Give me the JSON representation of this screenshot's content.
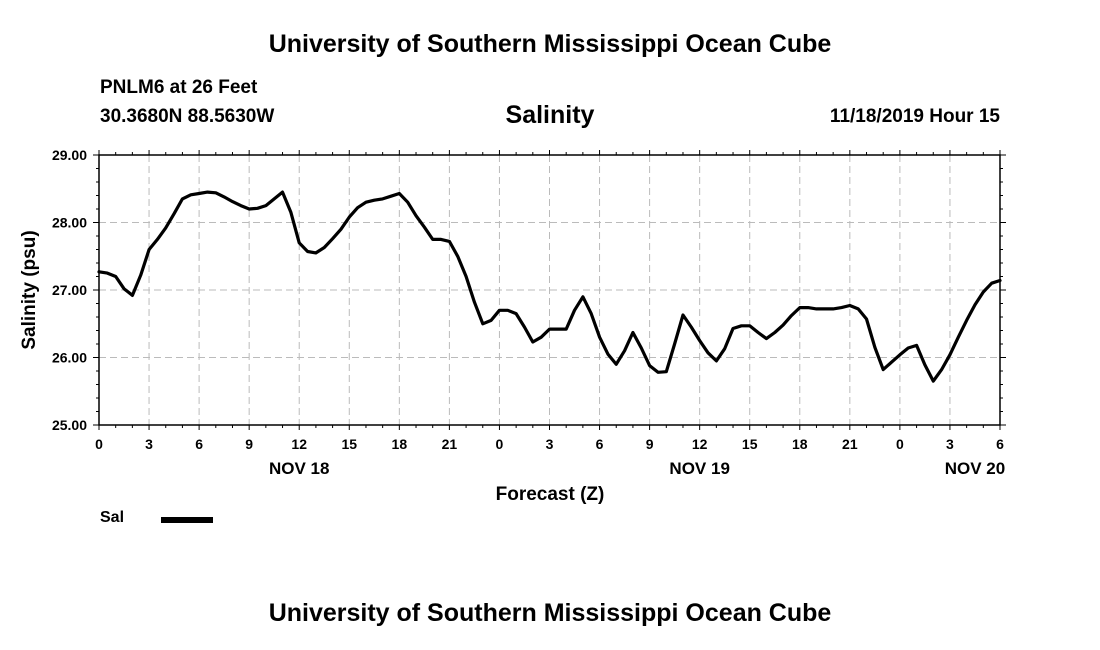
{
  "header": {
    "org_title": "University of Southern Mississippi Ocean Cube",
    "station": "PNLM6 at 26 Feet",
    "coords": "30.3680N 88.5630W",
    "variable": "Salinity",
    "datetime": "11/18/2019 Hour 15"
  },
  "footer": {
    "org_title": "University of Southern Mississippi Ocean Cube"
  },
  "legend": {
    "label": "Sal",
    "color": "#000000"
  },
  "chart_data": {
    "type": "line",
    "title": "Salinity",
    "xlabel": "Forecast (Z)",
    "ylabel": "Salinity (psu)",
    "x_unit": "hours since NOV 18 00Z",
    "xlim": [
      0,
      54
    ],
    "ylim": [
      25,
      29
    ],
    "grid": true,
    "legend_position": "bottom-left",
    "y_ticks": [
      {
        "value": 25,
        "label": "25.00"
      },
      {
        "value": 26,
        "label": "26.00"
      },
      {
        "value": 27,
        "label": "27.00"
      },
      {
        "value": 28,
        "label": "28.00"
      },
      {
        "value": 29,
        "label": "29.00"
      }
    ],
    "x_ticks": [
      {
        "value": 0,
        "label": "0"
      },
      {
        "value": 3,
        "label": "3"
      },
      {
        "value": 6,
        "label": "6"
      },
      {
        "value": 9,
        "label": "9"
      },
      {
        "value": 12,
        "label": "12"
      },
      {
        "value": 15,
        "label": "15"
      },
      {
        "value": 18,
        "label": "18"
      },
      {
        "value": 21,
        "label": "21"
      },
      {
        "value": 24,
        "label": "0"
      },
      {
        "value": 27,
        "label": "3"
      },
      {
        "value": 30,
        "label": "6"
      },
      {
        "value": 33,
        "label": "9"
      },
      {
        "value": 36,
        "label": "12"
      },
      {
        "value": 39,
        "label": "15"
      },
      {
        "value": 42,
        "label": "18"
      },
      {
        "value": 45,
        "label": "21"
      },
      {
        "value": 48,
        "label": "0"
      },
      {
        "value": 51,
        "label": "3"
      },
      {
        "value": 54,
        "label": "6"
      }
    ],
    "date_labels": [
      {
        "value": 12,
        "label": "NOV 18"
      },
      {
        "value": 36,
        "label": "NOV 19"
      },
      {
        "value": 52.5,
        "label": "NOV 20"
      }
    ],
    "series": [
      {
        "name": "Sal",
        "x": [
          0,
          0.5,
          1,
          1.5,
          2,
          2.5,
          3,
          3.5,
          4,
          4.5,
          5,
          5.5,
          6,
          6.5,
          7,
          7.5,
          8,
          8.5,
          9,
          9.5,
          10,
          10.5,
          11,
          11.5,
          12,
          12.5,
          13,
          13.5,
          14,
          14.5,
          15,
          15.5,
          16,
          16.5,
          17,
          17.5,
          18,
          18.5,
          19,
          19.5,
          20,
          20.5,
          21,
          21.5,
          22,
          22.5,
          23,
          23.5,
          24,
          24.5,
          25,
          25.5,
          26,
          26.5,
          27,
          27.5,
          28,
          28.5,
          29,
          29.5,
          30,
          30.5,
          31,
          31.5,
          32,
          32.5,
          33,
          33.5,
          34,
          34.5,
          35,
          35.5,
          36,
          36.5,
          37,
          37.5,
          38,
          38.5,
          39,
          39.5,
          40,
          40.5,
          41,
          41.5,
          42,
          42.5,
          43,
          43.5,
          44,
          44.5,
          45,
          45.5,
          46,
          46.5,
          47,
          47.5,
          48,
          48.5,
          49,
          49.5,
          50,
          50.5,
          51,
          51.5,
          52,
          52.5,
          53,
          53.5,
          54
        ],
        "values": [
          27.27,
          27.25,
          27.2,
          27.02,
          26.92,
          27.22,
          27.6,
          27.75,
          27.92,
          28.13,
          28.35,
          28.41,
          28.43,
          28.45,
          28.44,
          28.38,
          28.31,
          28.25,
          28.2,
          28.21,
          28.25,
          28.35,
          28.45,
          28.15,
          27.7,
          27.57,
          27.55,
          27.63,
          27.76,
          27.9,
          28.08,
          28.22,
          28.3,
          28.33,
          28.35,
          28.39,
          28.43,
          28.3,
          28.1,
          27.93,
          27.75,
          27.75,
          27.72,
          27.5,
          27.2,
          26.82,
          26.5,
          26.55,
          26.7,
          26.7,
          26.65,
          26.45,
          26.23,
          26.3,
          26.42,
          26.42,
          26.42,
          26.7,
          26.9,
          26.65,
          26.3,
          26.05,
          25.9,
          26.1,
          26.37,
          26.14,
          25.88,
          25.78,
          25.79,
          26.2,
          26.63,
          26.45,
          26.25,
          26.07,
          25.95,
          26.13,
          26.43,
          26.47,
          26.47,
          26.37,
          26.28,
          26.37,
          26.48,
          26.62,
          26.74,
          26.74,
          26.72,
          26.72,
          26.72,
          26.74,
          26.77,
          26.72,
          26.57,
          26.15,
          25.82,
          25.93,
          26.04,
          26.14,
          26.18,
          25.89,
          25.65,
          25.82,
          26.04,
          26.3,
          26.55,
          26.78,
          26.97,
          27.1,
          27.14
        ]
      }
    ]
  }
}
